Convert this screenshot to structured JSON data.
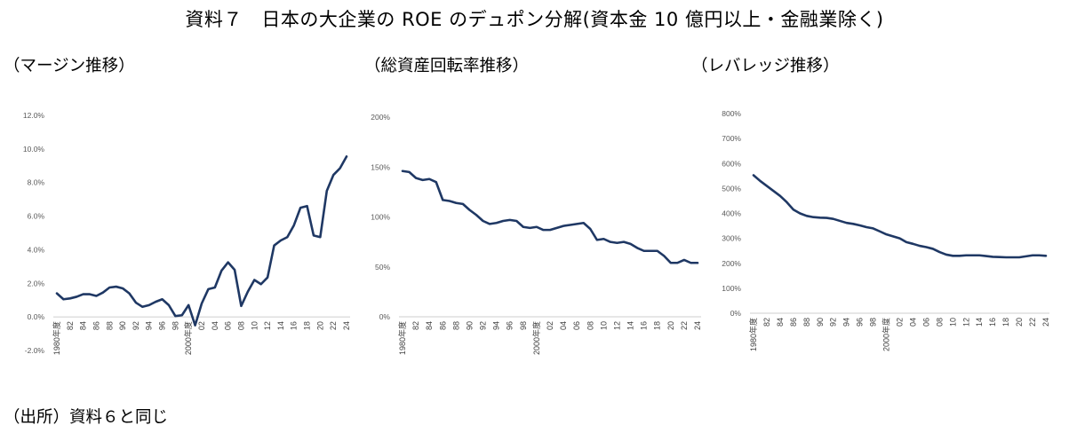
{
  "title": "資料７　日本の大企業の ROE のデュポン分解(資本金 10 億円以上・金融業除く)",
  "source": "（出所）資料６と同じ",
  "line_color": "#1f3864",
  "chart_data": [
    {
      "type": "line",
      "title": "（マージン推移）",
      "ylim": [
        -2,
        12
      ],
      "yticks": [
        -2,
        0,
        2,
        4,
        6,
        8,
        10,
        12
      ],
      "ytick_labels": [
        "-2.0%",
        "0.0%",
        "2.0%",
        "4.0%",
        "6.0%",
        "8.0%",
        "10.0%",
        "12.0%"
      ],
      "x": [
        1980,
        1981,
        1982,
        1983,
        1984,
        1985,
        1986,
        1987,
        1988,
        1989,
        1990,
        1991,
        1992,
        1993,
        1994,
        1995,
        1996,
        1997,
        1998,
        1999,
        2000,
        2001,
        2002,
        2003,
        2004,
        2005,
        2006,
        2007,
        2008,
        2009,
        2010,
        2011,
        2012,
        2013,
        2014,
        2015,
        2016,
        2017,
        2018,
        2019,
        2020,
        2021,
        2022,
        2023,
        2024
      ],
      "x_tick_labels": [
        "1980年度",
        "82",
        "84",
        "86",
        "88",
        "90",
        "92",
        "94",
        "96",
        "98",
        "2000年度",
        "02",
        "04",
        "06",
        "08",
        "10",
        "12",
        "14",
        "16",
        "18",
        "20",
        "22",
        "24"
      ],
      "values": [
        1.4,
        1.05,
        1.1,
        1.2,
        1.35,
        1.35,
        1.25,
        1.45,
        1.75,
        1.8,
        1.7,
        1.4,
        0.85,
        0.6,
        0.7,
        0.9,
        1.05,
        0.7,
        0.05,
        0.1,
        0.7,
        -0.5,
        0.8,
        1.65,
        1.75,
        2.75,
        3.25,
        2.8,
        0.65,
        1.5,
        2.2,
        1.95,
        2.35,
        4.25,
        4.55,
        4.75,
        5.45,
        6.5,
        6.6,
        4.85,
        4.75,
        7.5,
        8.45,
        8.85,
        9.55
      ]
    },
    {
      "type": "line",
      "title": "（総資産回転率推移）",
      "ylim": [
        0,
        200
      ],
      "yticks": [
        0,
        50,
        100,
        150,
        200
      ],
      "ytick_labels": [
        "0%",
        "50%",
        "100%",
        "150%",
        "200%"
      ],
      "x": [
        1980,
        1981,
        1982,
        1983,
        1984,
        1985,
        1986,
        1987,
        1988,
        1989,
        1990,
        1991,
        1992,
        1993,
        1994,
        1995,
        1996,
        1997,
        1998,
        1999,
        2000,
        2001,
        2002,
        2003,
        2004,
        2005,
        2006,
        2007,
        2008,
        2009,
        2010,
        2011,
        2012,
        2013,
        2014,
        2015,
        2016,
        2017,
        2018,
        2019,
        2020,
        2021,
        2022,
        2023,
        2024
      ],
      "x_tick_labels": [
        "1980年度",
        "82",
        "84",
        "86",
        "88",
        "90",
        "92",
        "94",
        "96",
        "98",
        "2000年度",
        "02",
        "04",
        "06",
        "08",
        "10",
        "12",
        "14",
        "16",
        "18",
        "20",
        "22",
        "24"
      ],
      "values": [
        146,
        145,
        139,
        137,
        138,
        135,
        117,
        116,
        114,
        113,
        107,
        102,
        96,
        93,
        94,
        96,
        97,
        96,
        90,
        89,
        90,
        87,
        87,
        89,
        91,
        92,
        93,
        94,
        88,
        77,
        78,
        75,
        74,
        75,
        73,
        69,
        66,
        66,
        66,
        61,
        54,
        54,
        57,
        54,
        54
      ]
    },
    {
      "type": "line",
      "title": "（レバレッジ推移）",
      "ylim": [
        0,
        800
      ],
      "yticks": [
        0,
        100,
        200,
        300,
        400,
        500,
        600,
        700,
        800
      ],
      "ytick_labels": [
        "0%",
        "100%",
        "200%",
        "300%",
        "400%",
        "500%",
        "600%",
        "700%",
        "800%"
      ],
      "x": [
        1980,
        1981,
        1982,
        1983,
        1984,
        1985,
        1986,
        1987,
        1988,
        1989,
        1990,
        1991,
        1992,
        1993,
        1994,
        1995,
        1996,
        1997,
        1998,
        1999,
        2000,
        2001,
        2002,
        2003,
        2004,
        2005,
        2006,
        2007,
        2008,
        2009,
        2010,
        2011,
        2012,
        2013,
        2014,
        2015,
        2016,
        2017,
        2018,
        2019,
        2020,
        2021,
        2022,
        2023,
        2024
      ],
      "x_tick_labels": [
        "1980年度",
        "82",
        "84",
        "86",
        "88",
        "90",
        "92",
        "94",
        "96",
        "98",
        "2000年度",
        "02",
        "04",
        "06",
        "08",
        "10",
        "12",
        "14",
        "16",
        "18",
        "20",
        "22",
        "24"
      ],
      "values": [
        553,
        530,
        510,
        490,
        470,
        445,
        415,
        400,
        390,
        385,
        383,
        382,
        378,
        370,
        362,
        358,
        352,
        345,
        340,
        328,
        316,
        308,
        300,
        285,
        278,
        270,
        265,
        258,
        245,
        235,
        230,
        230,
        232,
        232,
        232,
        229,
        226,
        225,
        224,
        224,
        224,
        228,
        232,
        232,
        230
      ]
    }
  ]
}
